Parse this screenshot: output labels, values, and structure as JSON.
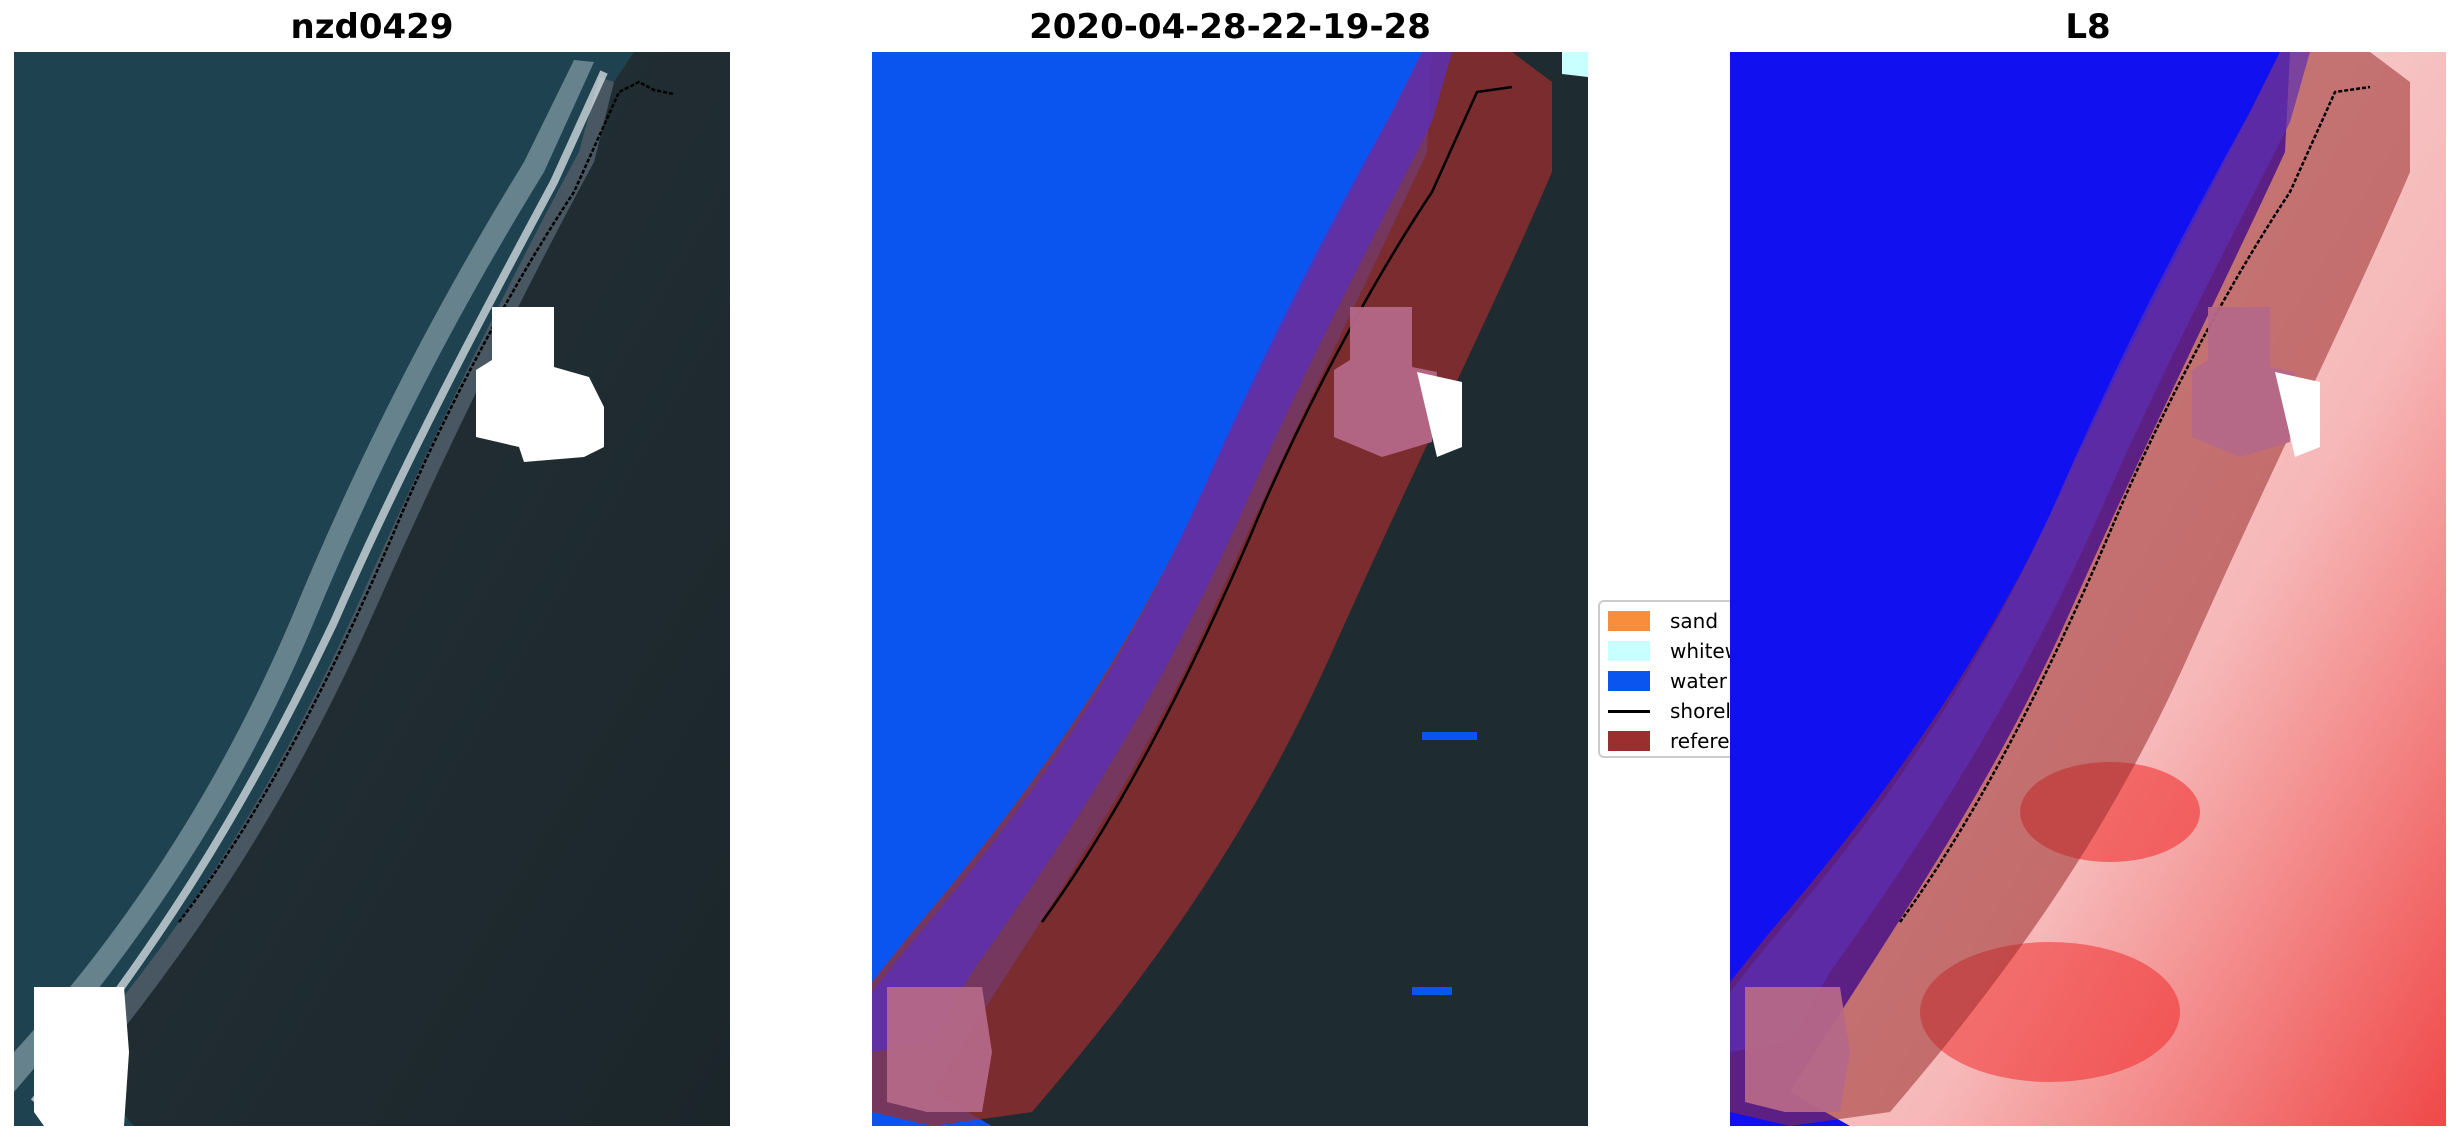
{
  "panels": {
    "rgb_title": "nzd0429",
    "classified_title": "2020-04-28-22-19-28",
    "index_title": "L8"
  },
  "legend": {
    "items": [
      {
        "label": "sand",
        "color": "#f88d3c"
      },
      {
        "label": "whitewater",
        "color": "#c8ffff"
      },
      {
        "label": "water",
        "color": "#0a55f0"
      },
      {
        "label": "shoreline",
        "color": "#000000"
      },
      {
        "label": "reference",
        "color": "#9b2e2e"
      }
    ]
  },
  "colors": {
    "sea_rgb": "#1f4250",
    "land_rgb": "#1d2a30",
    "water_class": "#0a55f0",
    "reference_buffer": "#9b2e2e",
    "cloud_mask_rgb": "#ffffff",
    "cloud_mask_overlay": "#b56888",
    "index_water": "#1010f0",
    "index_land": "#f4c4c4"
  }
}
